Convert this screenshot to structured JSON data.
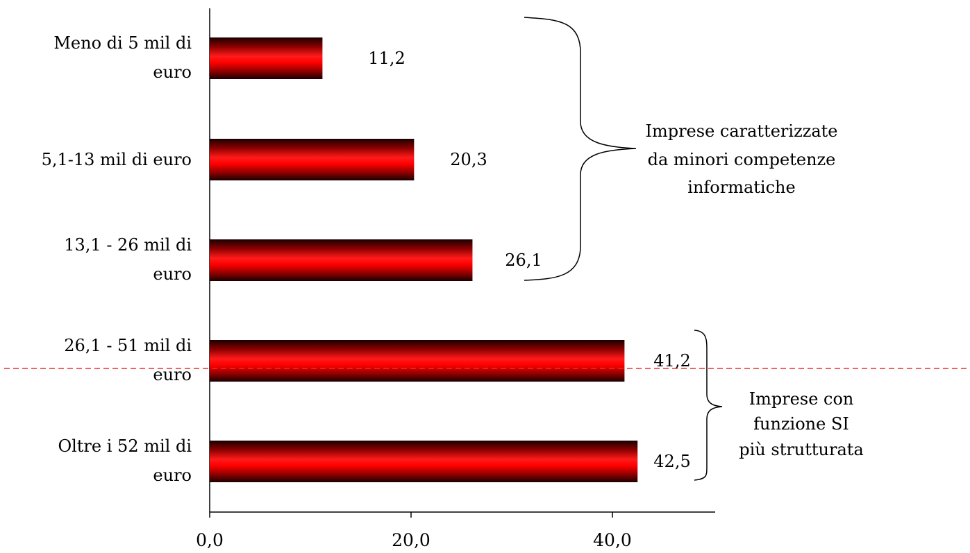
{
  "chart_data": {
    "type": "bar",
    "orientation": "horizontal",
    "categories": [
      [
        "Meno di 5 mil di",
        "euro"
      ],
      [
        "5,1-13 mil di euro"
      ],
      [
        "13,1 - 26 mil di",
        "euro"
      ],
      [
        "26,1 - 51 mil di",
        "euro"
      ],
      [
        "Oltre i 52 mil di",
        "euro"
      ]
    ],
    "values": [
      11.2,
      20.3,
      26.1,
      41.2,
      42.5
    ],
    "value_labels": [
      "11,2",
      "20,3",
      "26,1",
      "41,2",
      "42,5"
    ],
    "xlim": [
      0,
      50
    ],
    "x_ticks": [
      0,
      20,
      40
    ],
    "x_tick_labels": [
      "0,0",
      "20,0",
      "40,0"
    ],
    "title": "",
    "xlabel": "",
    "ylabel": "",
    "grid": false,
    "bar_color": "#ff0000",
    "bar_edge_color": "#1a0000",
    "annotations": [
      {
        "type": "brace",
        "covers_categories": [
          0,
          1,
          2
        ],
        "text": [
          "Imprese caratterizzate",
          "da minori competenze",
          "informatiche"
        ]
      },
      {
        "type": "brace",
        "covers_categories": [
          3,
          4
        ],
        "text": [
          "Imprese con",
          "funzione SI",
          "più strutturata"
        ]
      },
      {
        "type": "dashed-line",
        "color": "#e8302a"
      }
    ]
  }
}
